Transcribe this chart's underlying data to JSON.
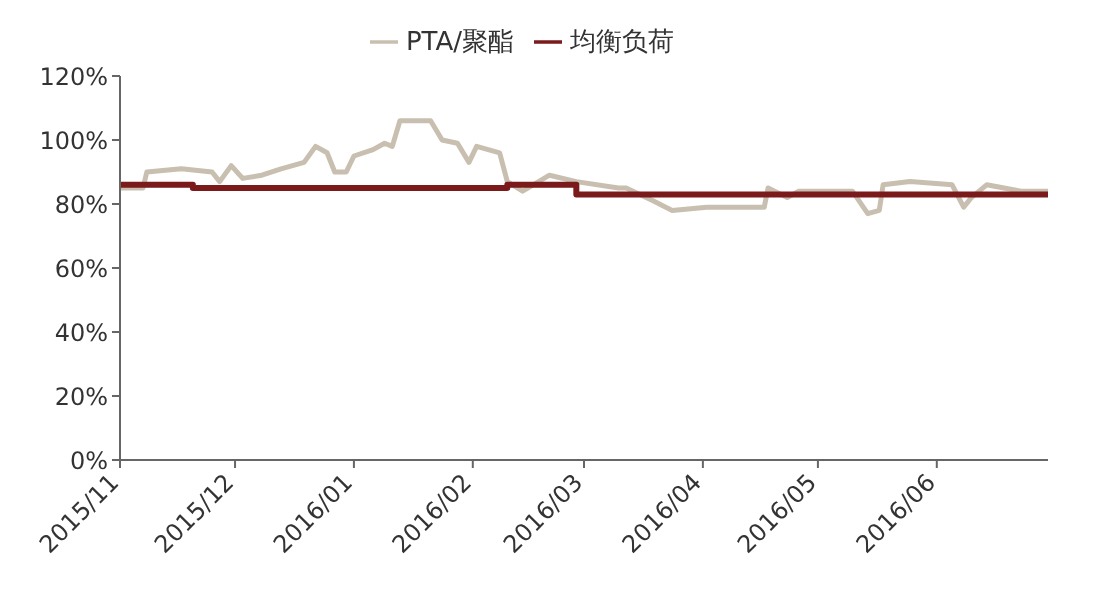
{
  "chart_data": {
    "type": "line",
    "legend": "top",
    "marker": "none",
    "xlim": [
      "2015-11-01",
      "2016-06-30"
    ],
    "xticks": [
      {
        "value": "2015-11-01",
        "label": "2015/11"
      },
      {
        "value": "2015-12-01",
        "label": "2015/12"
      },
      {
        "value": "2016-01-01",
        "label": "2016/01"
      },
      {
        "value": "2016-02-01",
        "label": "2016/02"
      },
      {
        "value": "2016-03-01",
        "label": "2016/03"
      },
      {
        "value": "2016-04-01",
        "label": "2016/04"
      },
      {
        "value": "2016-05-01",
        "label": "2016/05"
      },
      {
        "value": "2016-06-01",
        "label": "2016/06"
      }
    ],
    "ylim": [
      0,
      120
    ],
    "yticks": [
      {
        "value": 0,
        "label": "0%"
      },
      {
        "value": 20,
        "label": "20%"
      },
      {
        "value": 40,
        "label": "40%"
      },
      {
        "value": 60,
        "label": "60%"
      },
      {
        "value": 80,
        "label": "80%"
      },
      {
        "value": 100,
        "label": "100%"
      },
      {
        "value": 120,
        "label": "120%"
      }
    ],
    "series": [
      {
        "name": "PTA/聚酯",
        "color": "#c8bfb0",
        "x": [
          "2015-11-01",
          "2015-11-07",
          "2015-11-08",
          "2015-11-17",
          "2015-11-25",
          "2015-11-27",
          "2015-11-30",
          "2015-12-03",
          "2015-12-08",
          "2015-12-13",
          "2015-12-19",
          "2015-12-22",
          "2015-12-25",
          "2015-12-27",
          "2015-12-30",
          "2016-01-01",
          "2016-01-06",
          "2016-01-09",
          "2016-01-11",
          "2016-01-13",
          "2016-01-21",
          "2016-01-24",
          "2016-01-28",
          "2016-01-31",
          "2016-02-02",
          "2016-02-08",
          "2016-02-10",
          "2016-02-14",
          "2016-02-21",
          "2016-02-28",
          "2016-03-10",
          "2016-03-12",
          "2016-03-19",
          "2016-03-24",
          "2016-04-02",
          "2016-04-17",
          "2016-04-18",
          "2016-04-23",
          "2016-04-26",
          "2016-05-10",
          "2016-05-14",
          "2016-05-17",
          "2016-05-18",
          "2016-05-25",
          "2016-06-05",
          "2016-06-08",
          "2016-06-10",
          "2016-06-14",
          "2016-06-23",
          "2016-06-30"
        ],
        "values": [
          85,
          85,
          90,
          91,
          90,
          87,
          92,
          88,
          89,
          91,
          93,
          98,
          96,
          90,
          90,
          95,
          97,
          99,
          98,
          106,
          106,
          100,
          99,
          93,
          98,
          96,
          87,
          84,
          89,
          87,
          85,
          85,
          81,
          78,
          79,
          79,
          85,
          82,
          84,
          84,
          77,
          78,
          86,
          87,
          86,
          79,
          82,
          86,
          84,
          84
        ]
      },
      {
        "name": "均衡负荷",
        "type": "step",
        "color": "#7b1a1a",
        "x": [
          "2015-11-01",
          "2015-11-20",
          "2016-02-10",
          "2016-02-28",
          "2016-06-30"
        ],
        "values": [
          86,
          85,
          86,
          83,
          83
        ]
      }
    ]
  }
}
